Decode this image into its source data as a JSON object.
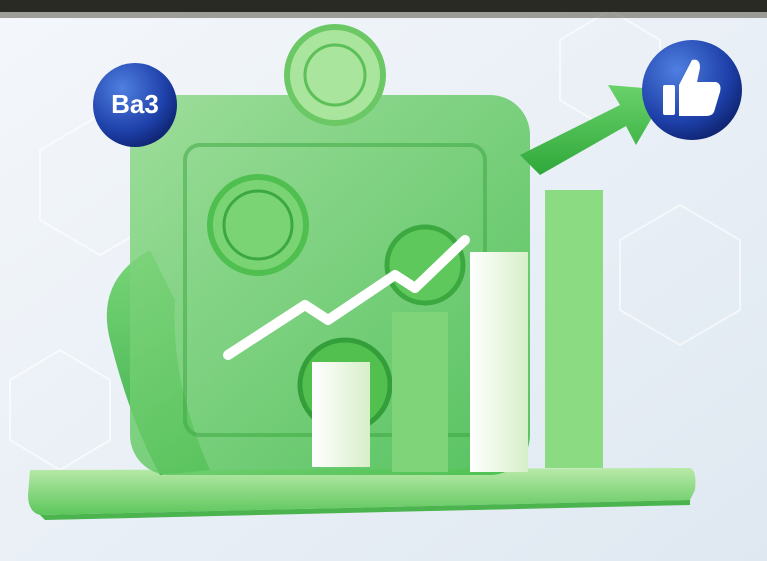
{
  "badge": {
    "label": "Ba3"
  }
}
